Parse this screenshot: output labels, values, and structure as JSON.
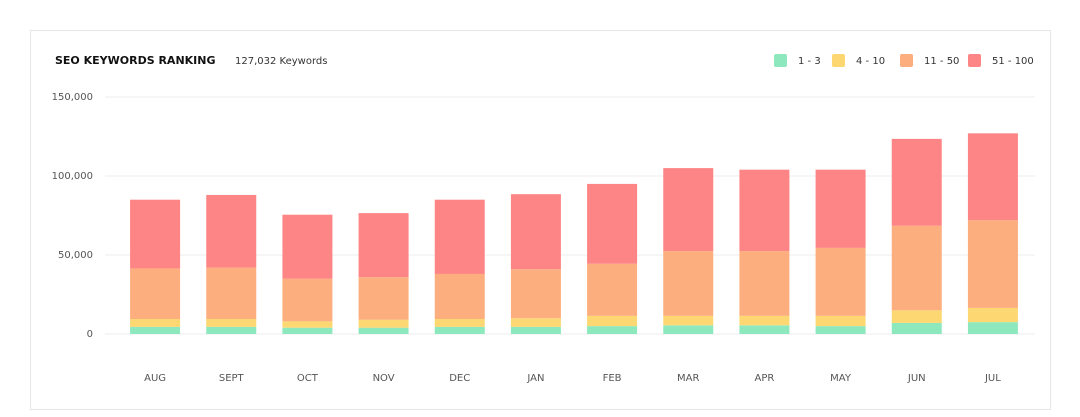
{
  "chart_data": {
    "type": "stacked-bar",
    "title": "SEO KEYWORDS RANKING",
    "subtitle": "127,032 Keywords",
    "categories": [
      "AUG",
      "SEPT",
      "OCT",
      "NOV",
      "DEC",
      "JAN",
      "FEB",
      "MAR",
      "APR",
      "MAY",
      "JUN",
      "JUL"
    ],
    "series": [
      {
        "name": "1 - 3",
        "color": "#8ee8be",
        "values": [
          4500,
          4500,
          4000,
          4000,
          4500,
          4500,
          5000,
          5500,
          5500,
          5000,
          7000,
          7500
        ]
      },
      {
        "name": "4 - 10",
        "color": "#fdd772",
        "values": [
          5000,
          5000,
          4000,
          5000,
          5000,
          5500,
          6500,
          6000,
          6000,
          6500,
          8000,
          9000
        ]
      },
      {
        "name": "11 - 50",
        "color": "#fcae7e",
        "values": [
          32000,
          32500,
          27000,
          27000,
          28500,
          31000,
          33000,
          41000,
          41000,
          43000,
          53500,
          55500
        ]
      },
      {
        "name": "51 - 100",
        "color": "#fe8585",
        "values": [
          43500,
          46000,
          40500,
          40500,
          47000,
          47500,
          50500,
          52500,
          51500,
          49500,
          55000,
          55000
        ]
      }
    ],
    "ylim": [
      0,
      150000
    ],
    "yticks": [
      0,
      {
        "value": 50000,
        "label": "50,000"
      },
      {
        "value": 100000,
        "label": "100,000"
      },
      {
        "value": 150000,
        "label": "150,000"
      }
    ],
    "grid": true,
    "legend": "top-right"
  }
}
